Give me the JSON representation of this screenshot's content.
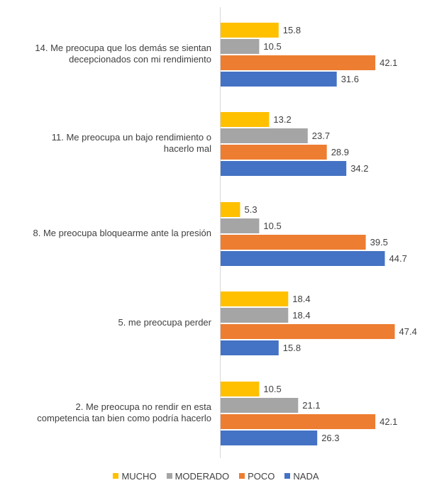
{
  "chart_data": {
    "type": "bar",
    "orientation": "horizontal",
    "categories": [
      "14. Me preocupa que los demás se sientan decepcionados con mi rendimiento",
      "11. Me preocupa un bajo rendimiento o hacerlo mal",
      "8. Me preocupa bloquearme ante la presión",
      "5. me preocupa perder",
      "2. Me preocupa no rendir en esta competencia tan bien como podría hacerlo"
    ],
    "series": [
      {
        "name": "MUCHO",
        "color": "#FFC000",
        "values": [
          15.8,
          13.2,
          5.3,
          18.4,
          10.5
        ]
      },
      {
        "name": "MODERADO",
        "color": "#A5A5A5",
        "values": [
          10.5,
          23.7,
          10.5,
          18.4,
          21.1
        ]
      },
      {
        "name": "POCO",
        "color": "#ED7D31",
        "values": [
          42.1,
          28.9,
          39.5,
          47.4,
          42.1
        ]
      },
      {
        "name": "NADA",
        "color": "#4472C4",
        "values": [
          31.6,
          34.2,
          44.7,
          15.8,
          26.3
        ]
      }
    ],
    "title": "",
    "xlabel": "",
    "ylabel": "",
    "xlim": [
      0,
      50
    ],
    "grid": false,
    "legend_position": "bottom"
  }
}
